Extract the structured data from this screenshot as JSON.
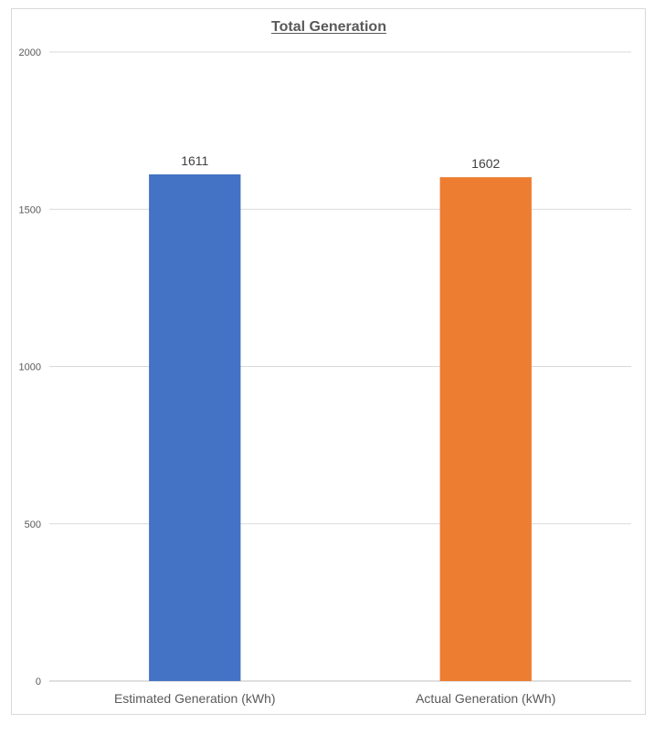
{
  "chart_data": {
    "type": "bar",
    "title": "Total Generation",
    "categories": [
      "Estimated Generation (kWh)",
      "Actual Generation (kWh)"
    ],
    "values": [
      1611,
      1602
    ],
    "data_labels": [
      "1611",
      "1602"
    ],
    "colors": [
      "#4472c4",
      "#ed7d31"
    ],
    "ylim": [
      0,
      2000
    ],
    "yticks": [
      0,
      500,
      1000,
      1500,
      2000
    ],
    "ytick_labels": [
      "0",
      "500",
      "1000",
      "1500",
      "2000"
    ],
    "grid": true,
    "legend": "none"
  }
}
